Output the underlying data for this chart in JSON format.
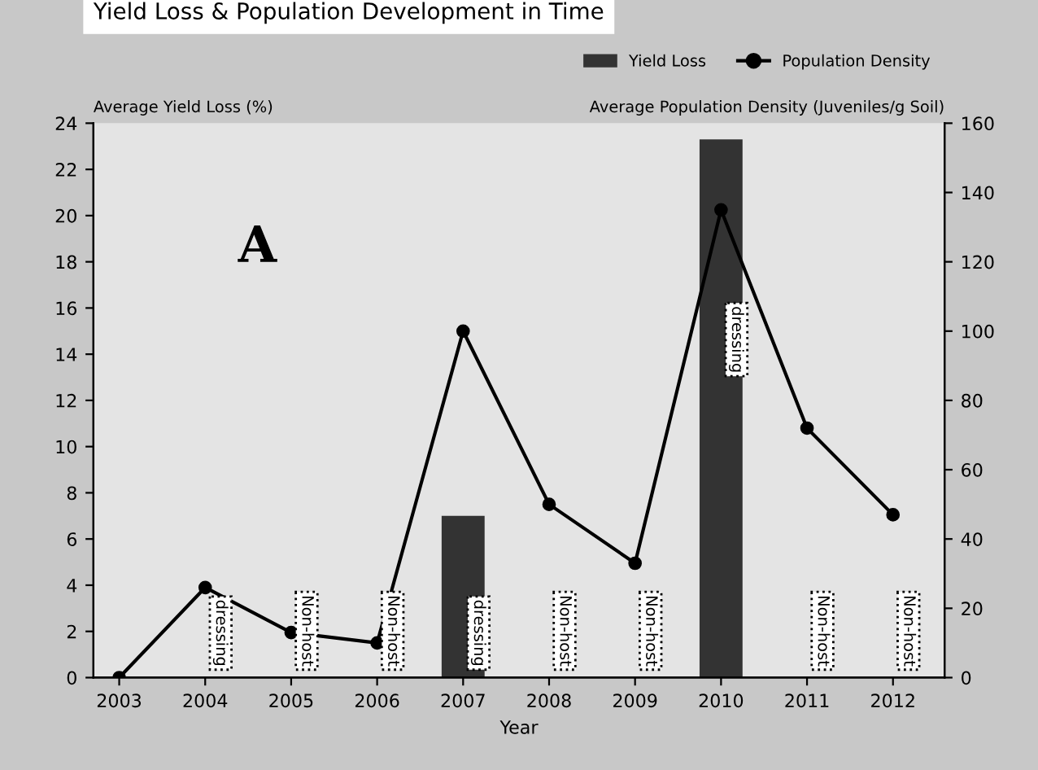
{
  "chart_data": {
    "type": "bar",
    "title": "Yield Loss & Population Development in Time",
    "xlabel": "Year",
    "ylabel": "Average Yield Loss (%)",
    "y2label": "Average Population Density (Juveniles/g Soil)",
    "categories": [
      "2003",
      "2004",
      "2005",
      "2006",
      "2007",
      "2008",
      "2009",
      "2010",
      "2011",
      "2012"
    ],
    "series": [
      {
        "name": "Yield Loss",
        "color": "#333333",
        "values": [
          null,
          null,
          null,
          null,
          7,
          null,
          null,
          23.3,
          null,
          null
        ]
      },
      {
        "name": "Population Density",
        "type": "line",
        "axis": "y2",
        "color": "#000000",
        "marker": "circle",
        "values": [
          0,
          26,
          13,
          10,
          100,
          50,
          33,
          135,
          72,
          47
        ]
      }
    ],
    "ylim": [
      0,
      24
    ],
    "yticks": [
      0,
      2,
      4,
      6,
      8,
      10,
      12,
      14,
      16,
      18,
      20,
      22,
      24
    ],
    "y2lim": [
      0,
      160
    ],
    "y2ticks": [
      0,
      20,
      40,
      60,
      80,
      100,
      120,
      140,
      160
    ],
    "legend": "top right",
    "grid": false,
    "annotations": [
      "A",
      "dressing",
      "Non-host",
      "Non-host",
      "dressing",
      "Non-host",
      "Non-host",
      "dressing",
      "Non-host",
      "Non-host"
    ]
  }
}
